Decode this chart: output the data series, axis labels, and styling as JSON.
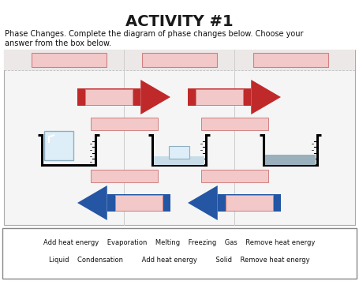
{
  "title": "ACTIVITY #1",
  "subtitle_line1": "Phase Changes. Complete the diagram of phase changes below. Choose your",
  "subtitle_line2": "answer from the box below.",
  "bg_color": "#ffffff",
  "diagram_bg": "#f5f5f5",
  "pink_box_color": "#f2c8c8",
  "pink_box_border": "#d08080",
  "red_arrow_color": "#c0292a",
  "blue_arrow_color": "#2456a4",
  "word_box_line1": "Add heat energy    Evaporation    Melting    Freezing    Gas    Remove heat energy",
  "word_box_line2": "Liquid    Condensation         Add heat energy         Solid    Remove heat energy"
}
